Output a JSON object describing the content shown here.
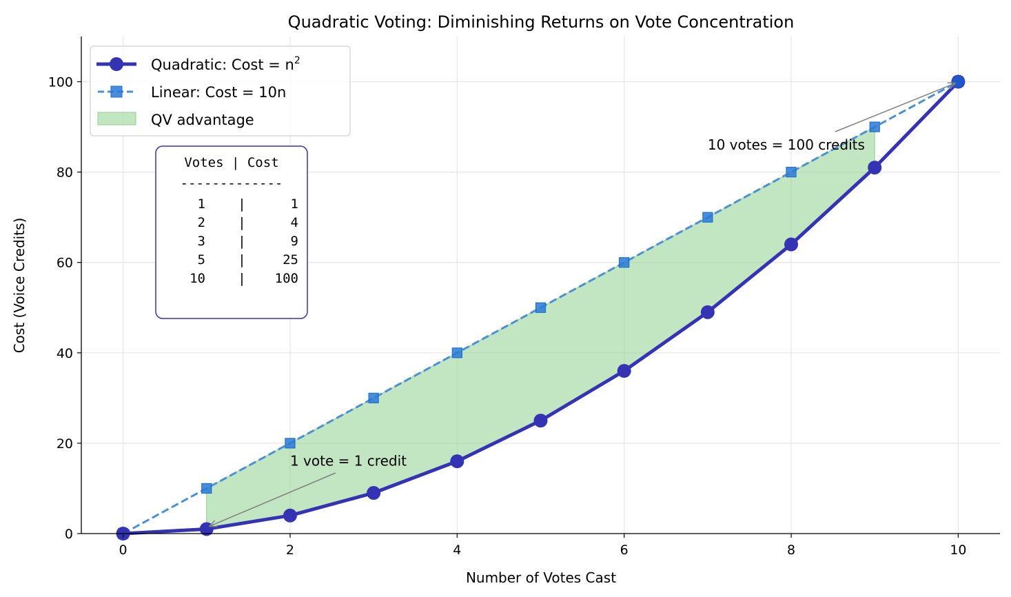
{
  "chart_data": {
    "type": "line",
    "title": "Quadratic Voting: Diminishing Returns on Vote Concentration",
    "xlabel": "Number of Votes Cast",
    "ylabel": "Cost (Voice Credits)",
    "xlim": [
      -0.5,
      10.5
    ],
    "ylim": [
      0,
      110
    ],
    "xticks": [
      0,
      2,
      4,
      6,
      8,
      10
    ],
    "yticks": [
      0,
      20,
      40,
      60,
      80,
      100
    ],
    "grid": true,
    "legend_position": "top-left",
    "x": [
      0,
      1,
      2,
      3,
      4,
      5,
      6,
      7,
      8,
      9,
      10
    ],
    "series": [
      {
        "name": "Quadratic: Cost = n²",
        "name_base": "Quadratic: Cost = n",
        "name_sup": "2",
        "values": [
          0,
          1,
          4,
          9,
          16,
          25,
          36,
          49,
          64,
          81,
          100
        ],
        "color": "#3333b3",
        "marker": "circle",
        "style": "solid"
      },
      {
        "name": "Linear: Cost = 10n",
        "values": [
          0,
          10,
          20,
          30,
          40,
          50,
          60,
          70,
          80,
          90,
          100
        ],
        "color": "#4a90d9",
        "marker": "square",
        "style": "dashed"
      }
    ],
    "fill": {
      "name": "QV advantage",
      "x_from": 1,
      "x_to": 9,
      "color": "#8fcf8f"
    },
    "annotations": [
      {
        "text": "1 vote = 1 credit",
        "xy": [
          1,
          1
        ],
        "xytext": [
          2,
          15
        ]
      },
      {
        "text": "10 votes = 100 credits",
        "xy": [
          10,
          100
        ],
        "xytext": [
          7,
          85
        ]
      }
    ],
    "table_box": {
      "header": "Votes  |  Cost",
      "separator": "-------------",
      "rows": [
        [
          "1",
          "1"
        ],
        [
          "2",
          "4"
        ],
        [
          "3",
          "9"
        ],
        [
          "5",
          "25"
        ],
        [
          "10",
          "100"
        ]
      ]
    }
  }
}
